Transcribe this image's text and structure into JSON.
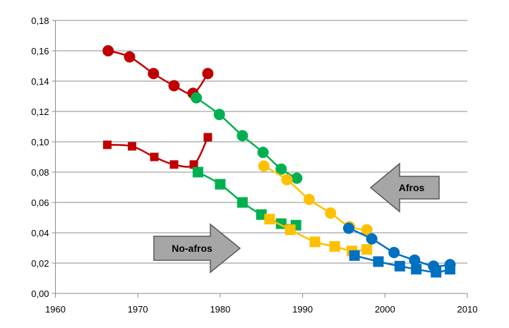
{
  "chart_data": {
    "type": "line",
    "title": "",
    "xlabel": "",
    "ylabel": "",
    "xlim": [
      1960,
      2010
    ],
    "ylim": [
      0,
      0.18
    ],
    "x_ticks": [
      "1960",
      "1970",
      "1980",
      "1990",
      "2000",
      "2010"
    ],
    "x_tick_values": [
      1960,
      1970,
      1980,
      1990,
      2000,
      2010
    ],
    "y_ticks": [
      "0,00",
      "0,02",
      "0,04",
      "0,06",
      "0,08",
      "0,10",
      "0,12",
      "0,14",
      "0,16",
      "0,18"
    ],
    "y_tick_values": [
      0,
      0.02,
      0.04,
      0.06,
      0.08,
      0.1,
      0.12,
      0.14,
      0.16,
      0.18
    ],
    "grid": "horizontal",
    "series": [
      {
        "color": "#C00000",
        "marker": "circle",
        "x": [
          1966.4,
          1969.0,
          1971.9,
          1974.4,
          1976.7,
          1978.5
        ],
        "y": [
          0.16,
          0.156,
          0.145,
          0.137,
          0.132,
          0.145
        ]
      },
      {
        "color": "#C00000",
        "marker": "square",
        "x": [
          1966.3,
          1969.3,
          1972.0,
          1974.4,
          1976.8,
          1978.5
        ],
        "y": [
          0.098,
          0.097,
          0.09,
          0.085,
          0.085,
          0.103
        ]
      },
      {
        "color": "#00B050",
        "marker": "circle",
        "x": [
          1977.1,
          1979.9,
          1982.7,
          1985.2,
          1987.4,
          1989.3
        ],
        "y": [
          0.129,
          0.118,
          0.104,
          0.093,
          0.082,
          0.076
        ]
      },
      {
        "color": "#00B050",
        "marker": "square",
        "x": [
          1977.3,
          1980.0,
          1982.7,
          1985.0,
          1987.4,
          1989.2
        ],
        "y": [
          0.08,
          0.072,
          0.06,
          0.052,
          0.046,
          0.045
        ]
      },
      {
        "color": "#FFC000",
        "marker": "circle",
        "x": [
          1985.3,
          1988.1,
          1990.8,
          1993.4,
          1995.7,
          1997.8
        ],
        "y": [
          0.084,
          0.075,
          0.062,
          0.053,
          0.044,
          0.042
        ]
      },
      {
        "color": "#FFC000",
        "marker": "square",
        "x": [
          1986.0,
          1988.5,
          1991.5,
          1993.9,
          1996.0,
          1997.8
        ],
        "y": [
          0.049,
          0.042,
          0.034,
          0.031,
          0.028,
          0.029
        ]
      },
      {
        "color": "#0070C0",
        "marker": "circle",
        "x": [
          1995.6,
          1998.4,
          2001.1,
          2003.6,
          2005.9,
          2007.9
        ],
        "y": [
          0.043,
          0.036,
          0.027,
          0.022,
          0.018,
          0.019
        ]
      },
      {
        "color": "#0070C0",
        "marker": "square",
        "x": [
          1996.3,
          1999.2,
          2001.8,
          2003.8,
          2006.2,
          2007.9
        ],
        "y": [
          0.025,
          0.021,
          0.018,
          0.016,
          0.014,
          0.016
        ]
      }
    ],
    "annotations": [
      {
        "text": "Afros",
        "shape": "arrow-left"
      },
      {
        "text": "No-afros",
        "shape": "arrow-right"
      }
    ]
  }
}
